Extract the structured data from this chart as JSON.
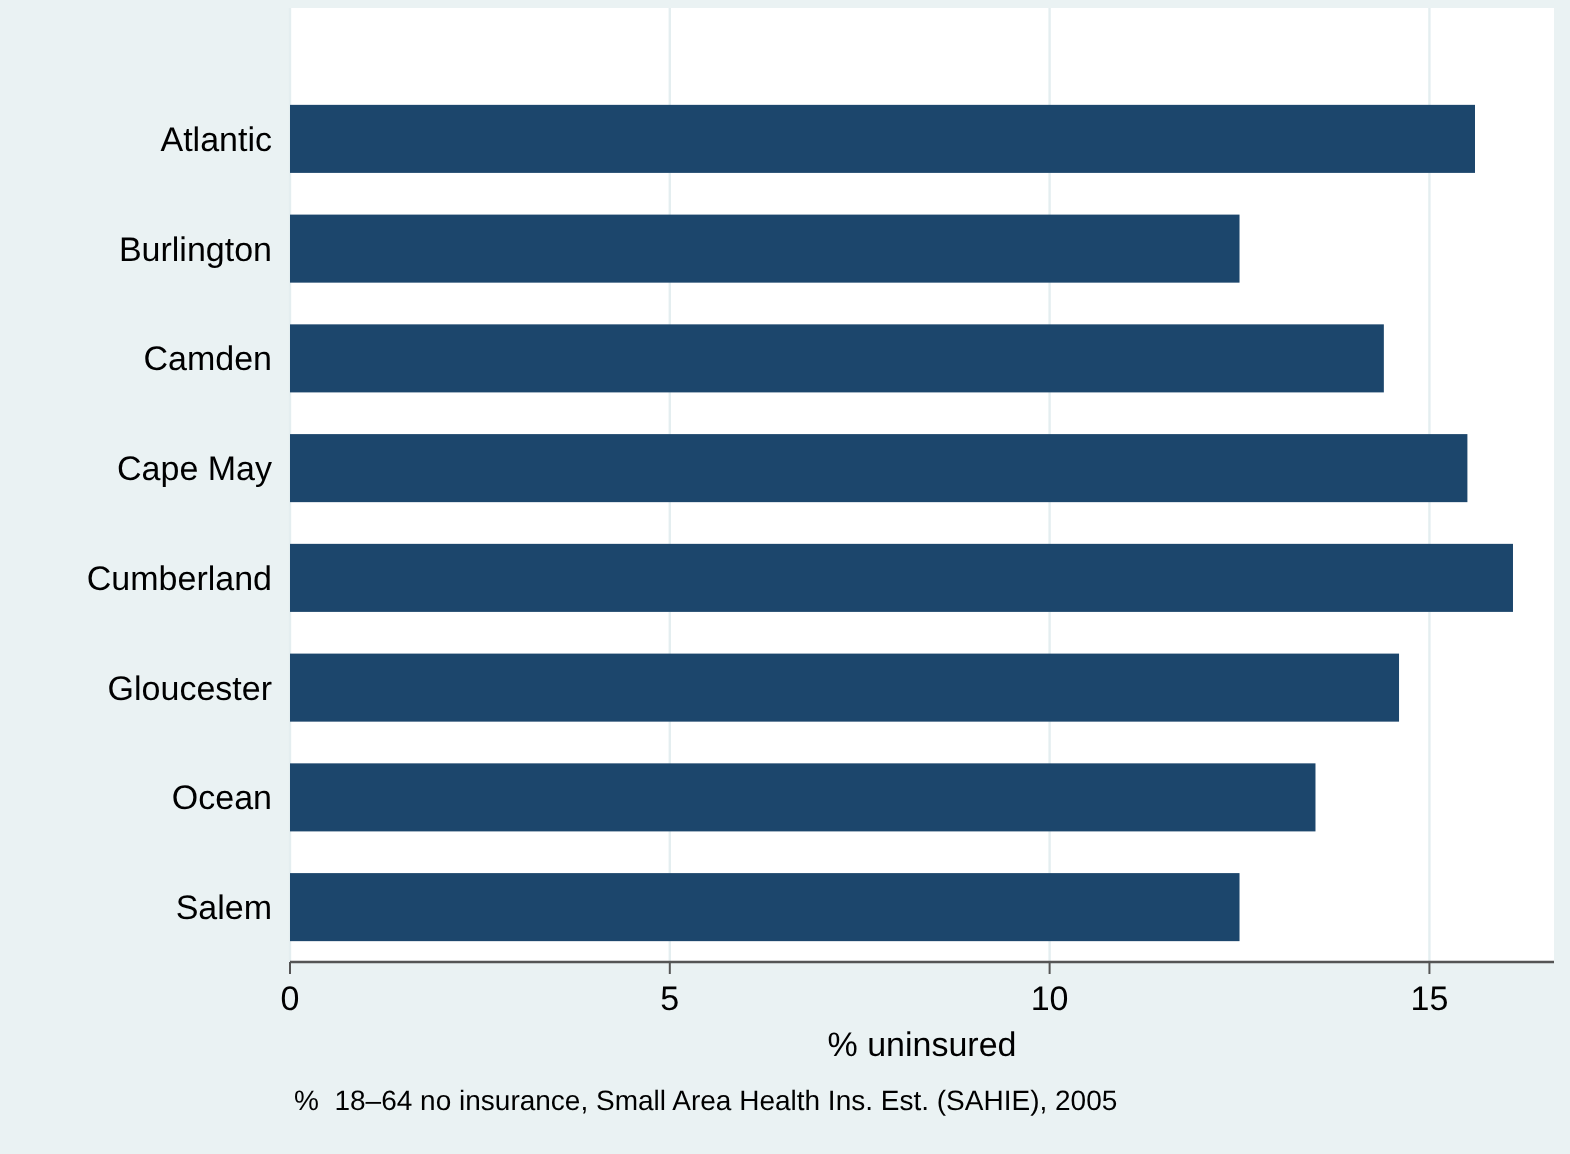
{
  "chart_data": {
    "type": "bar",
    "orientation": "horizontal",
    "xlabel": "% uninsured",
    "annotations": [
      "%  18–64 no insurance, Small Area Health Ins. Est. (SAHIE), 2005"
    ],
    "categories": [
      "Atlantic",
      "Burlington",
      "Camden",
      "Cape May",
      "Cumberland",
      "Gloucester",
      "Ocean",
      "Salem"
    ],
    "values": [
      15.6,
      12.5,
      14.4,
      15.5,
      16.1,
      14.6,
      13.5,
      12.5
    ],
    "color": "#1c466c",
    "xlim": [
      0,
      16.64
    ],
    "xticks": [
      0,
      5,
      10,
      15
    ],
    "grid": "x"
  }
}
